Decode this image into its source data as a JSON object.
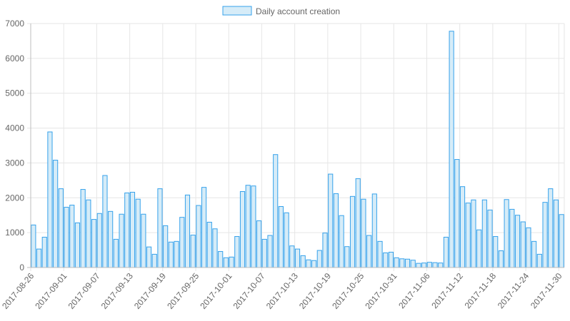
{
  "chart_data": {
    "type": "bar",
    "legend": {
      "label": "Daily account creation",
      "position": "top"
    },
    "colors": {
      "bar_fill": "#d6ecf8",
      "bar_stroke": "#36a2eb",
      "grid": "#e6e6e6",
      "axis": "#bdbdbd",
      "text": "#666666"
    },
    "grid": true,
    "ylim": [
      0,
      7000
    ],
    "y_ticks": [
      0,
      1000,
      2000,
      3000,
      4000,
      5000,
      6000,
      7000
    ],
    "x_tick_labels": [
      "2017-08-26",
      "2017-09-01",
      "2017-09-07",
      "2017-09-13",
      "2017-09-19",
      "2017-09-25",
      "2017-10-01",
      "2017-10-07",
      "2017-10-13",
      "2017-10-19",
      "2017-10-25",
      "2017-10-31",
      "2017-11-06",
      "2017-11-12",
      "2017-11-18",
      "2017-11-24",
      "2017-11-30"
    ],
    "start_date": "2017-08-26",
    "end_date": "2017-11-30",
    "values": [
      1220,
      530,
      870,
      3890,
      3080,
      2260,
      1730,
      1790,
      1280,
      2240,
      1940,
      1380,
      1550,
      2640,
      1610,
      810,
      1530,
      2140,
      2160,
      1960,
      1530,
      590,
      380,
      2260,
      1200,
      730,
      750,
      1440,
      2080,
      930,
      1780,
      2300,
      1300,
      1110,
      460,
      280,
      300,
      890,
      2180,
      2360,
      2340,
      1340,
      810,
      920,
      3240,
      1750,
      1570,
      620,
      530,
      340,
      220,
      200,
      490,
      990,
      2680,
      2120,
      1490,
      600,
      2040,
      2550,
      1960,
      920,
      2110,
      750,
      420,
      440,
      280,
      250,
      240,
      210,
      120,
      130,
      150,
      140,
      130,
      870,
      6780,
      3100,
      2320,
      1850,
      1940,
      1080,
      1940,
      1650,
      890,
      480,
      1950,
      1670,
      1500,
      1310,
      1140,
      750,
      380,
      1870,
      2260,
      1940,
      1520
    ]
  }
}
